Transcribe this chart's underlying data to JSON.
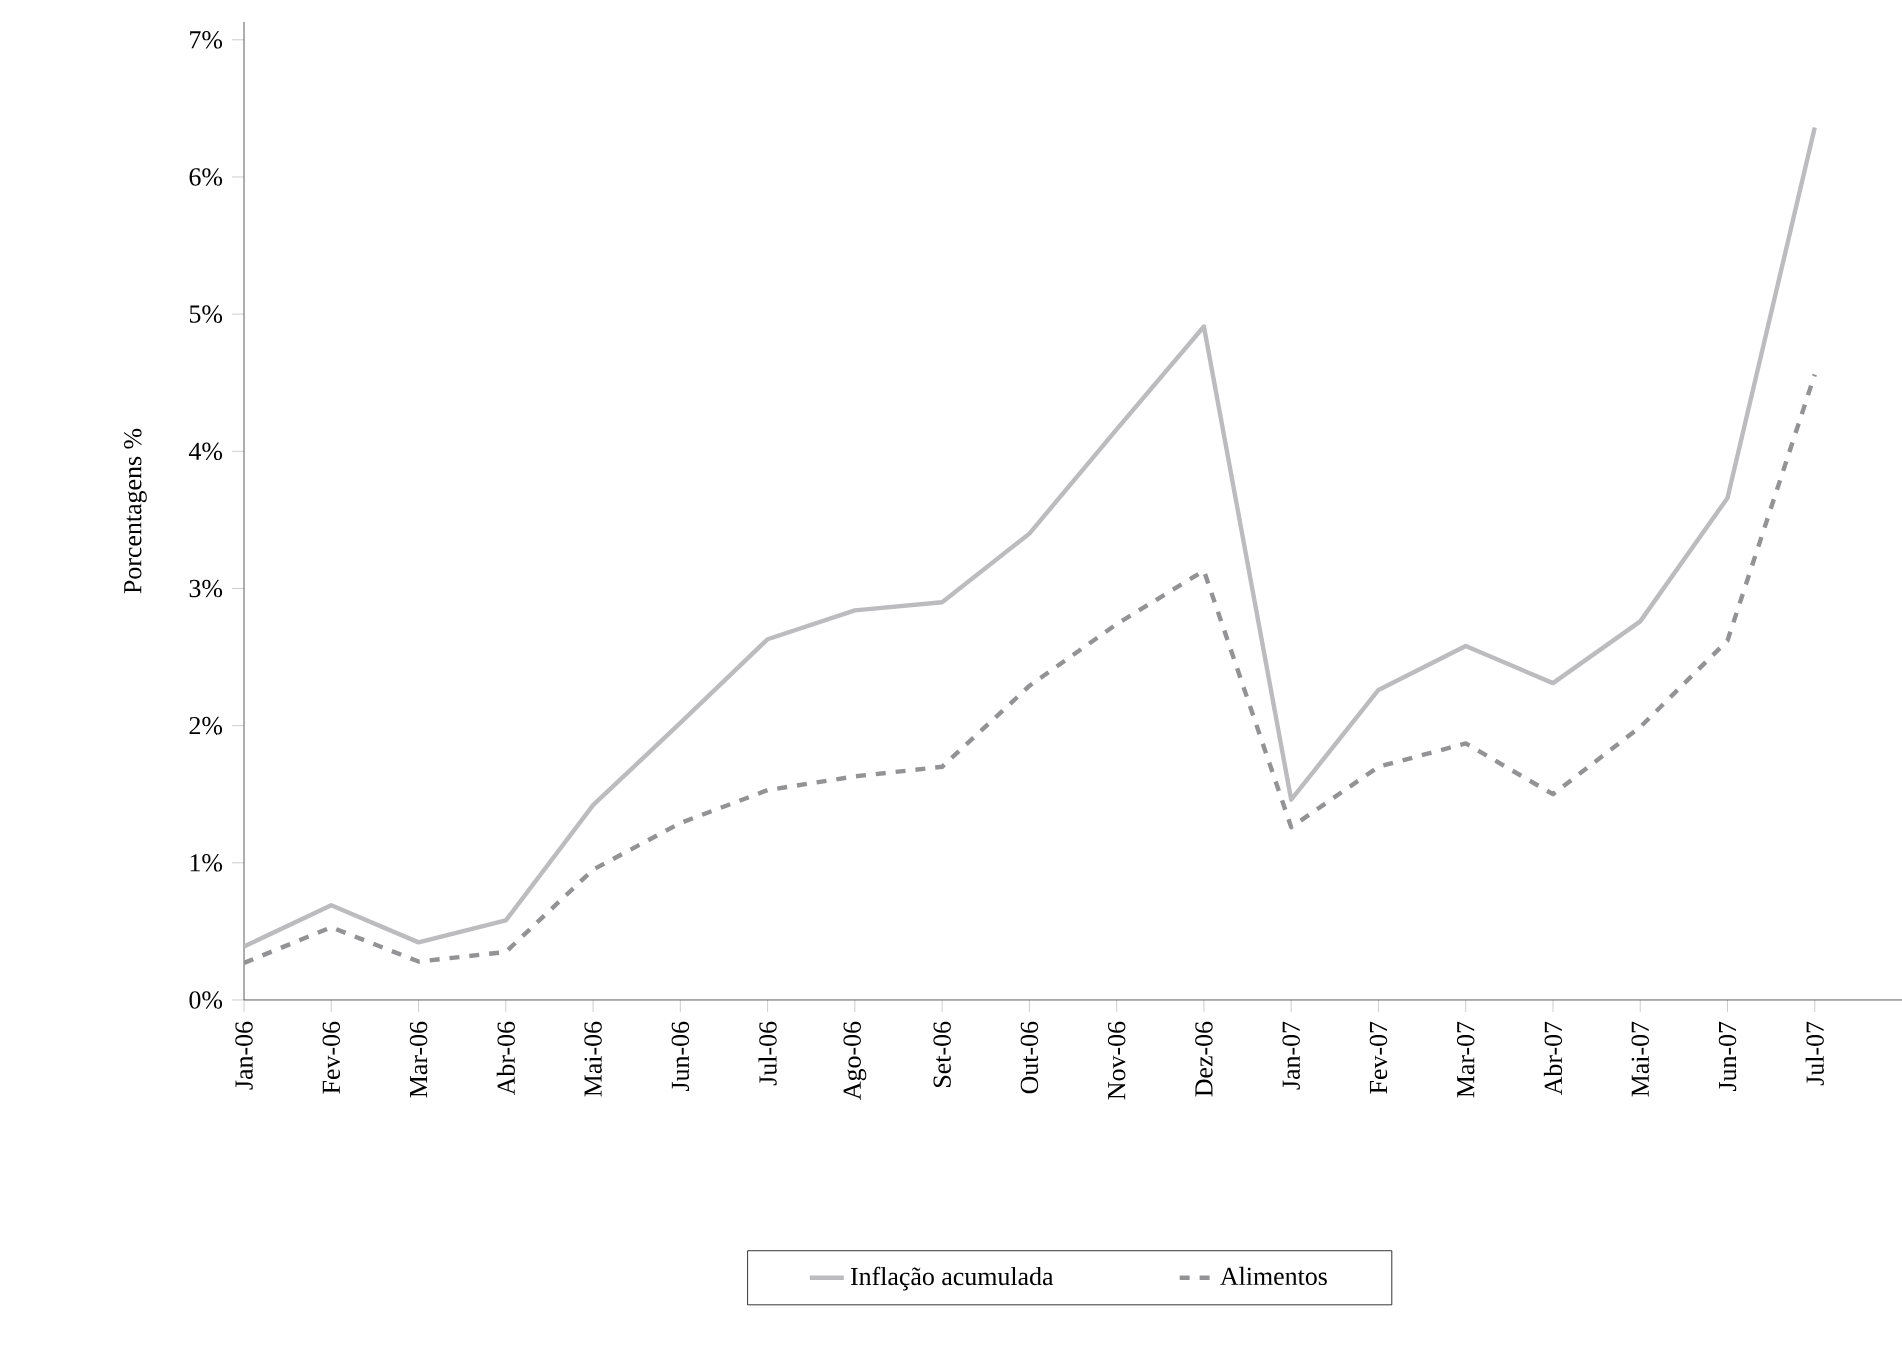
{
  "chart_data": {
    "type": "line",
    "ylabel": "Porcentagens %",
    "categories": [
      "Jan-06",
      "Fev-06",
      "Mar-06",
      "Abr-06",
      "Mai-06",
      "Jun-06",
      "Jul-06",
      "Ago-06",
      "Set-06",
      "Out-06",
      "Nov-06",
      "Dez-06",
      "Jan-07",
      "Fev-07",
      "Mar-07",
      "Abr-07",
      "Mai-07",
      "Jun-07",
      "Jul-07"
    ],
    "series": [
      {
        "name": "Inflação acumulada",
        "color": "#bcbcbf",
        "line_style": "solid",
        "values": [
          0.39,
          0.69,
          0.42,
          0.58,
          1.42,
          2.02,
          2.63,
          2.84,
          2.9,
          3.4,
          4.16,
          4.91,
          1.46,
          2.26,
          2.58,
          2.31,
          2.76,
          3.66,
          6.36
        ]
      },
      {
        "name": "Alimentos",
        "color": "#939395",
        "line_style": "dashed",
        "values": [
          0.27,
          0.53,
          0.28,
          0.35,
          0.95,
          1.29,
          1.53,
          1.63,
          1.7,
          2.29,
          2.74,
          3.13,
          1.26,
          1.7,
          1.87,
          1.5,
          1.99,
          2.62,
          4.56
        ]
      }
    ],
    "ylim": [
      0,
      7.13
    ],
    "yticks": [
      {
        "value": 0,
        "label": "0%"
      },
      {
        "value": 1,
        "label": "1%"
      },
      {
        "value": 2,
        "label": "2%"
      },
      {
        "value": 3,
        "label": "3%"
      },
      {
        "value": 4,
        "label": "4%"
      },
      {
        "value": 5,
        "label": "5%"
      },
      {
        "value": 6,
        "label": "6%"
      },
      {
        "value": 7,
        "label": "7%"
      }
    ],
    "grid": false,
    "legend": "bottom",
    "marker": "none"
  }
}
